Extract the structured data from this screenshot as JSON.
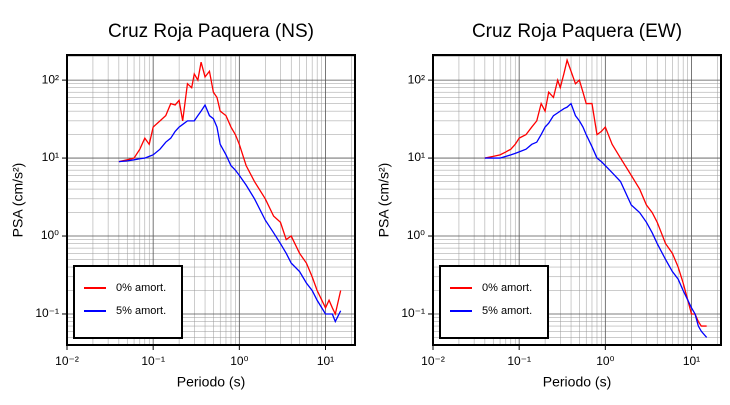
{
  "chart_data": [
    {
      "type": "line",
      "title": "Cruz Roja Paquera (NS)",
      "xlabel": "Periodo (s)",
      "ylabel": "PSA (cm/s²)",
      "log_x": true,
      "log_y": true,
      "grid": true,
      "minor_grid": true,
      "legend": "lower left",
      "xlim": [
        0.01,
        22
      ],
      "ylim": [
        0.04,
        210
      ],
      "xticks": [
        {
          "value": 0.01,
          "label": "10⁻²"
        },
        {
          "value": 0.1,
          "label": "10⁻¹"
        },
        {
          "value": 1,
          "label": "10⁰"
        },
        {
          "value": 10,
          "label": "10¹"
        }
      ],
      "yticks": [
        {
          "value": 0.1,
          "label": "10⁻¹"
        },
        {
          "value": 1,
          "label": "10⁰"
        },
        {
          "value": 10,
          "label": "10¹"
        },
        {
          "value": 100,
          "label": "10²"
        }
      ],
      "x": [
        0.04,
        0.05,
        0.06,
        0.07,
        0.08,
        0.09,
        0.1,
        0.12,
        0.14,
        0.16,
        0.18,
        0.2,
        0.22,
        0.25,
        0.28,
        0.3,
        0.33,
        0.36,
        0.4,
        0.45,
        0.5,
        0.55,
        0.6,
        0.7,
        0.8,
        0.9,
        1,
        1.2,
        1.5,
        2,
        2.5,
        3,
        3.5,
        4,
        5,
        6,
        7,
        8,
        10,
        11,
        12,
        13,
        15
      ],
      "series": [
        {
          "name": "0% amort.",
          "color": "#ff0000",
          "values": [
            9,
            9.5,
            10,
            13,
            18,
            15,
            25,
            30,
            35,
            50,
            48,
            55,
            30,
            90,
            80,
            120,
            100,
            170,
            110,
            130,
            70,
            60,
            40,
            35,
            25,
            20,
            15,
            8,
            5,
            3,
            1.8,
            1.5,
            0.9,
            1.0,
            0.6,
            0.45,
            0.3,
            0.2,
            0.12,
            0.15,
            0.12,
            0.1,
            0.2
          ]
        },
        {
          "name": "5% amort.",
          "color": "#0000ff",
          "values": [
            9,
            9.2,
            9.5,
            9.8,
            10,
            10.5,
            11,
            13,
            16,
            18,
            22,
            25,
            27,
            30,
            30,
            30,
            35,
            40,
            48,
            35,
            32,
            25,
            15,
            11,
            8,
            7,
            6,
            4.5,
            3,
            1.6,
            1.1,
            0.8,
            0.6,
            0.45,
            0.35,
            0.25,
            0.2,
            0.15,
            0.1,
            0.1,
            0.1,
            0.08,
            0.11
          ]
        }
      ]
    },
    {
      "type": "line",
      "title": "Cruz Roja Paquera (EW)",
      "xlabel": "Periodo (s)",
      "ylabel": "PSA (cm/s²)",
      "log_x": true,
      "log_y": true,
      "grid": true,
      "minor_grid": true,
      "legend": "lower left",
      "xlim": [
        0.01,
        22
      ],
      "ylim": [
        0.04,
        210
      ],
      "xticks": [
        {
          "value": 0.01,
          "label": "10⁻²"
        },
        {
          "value": 0.1,
          "label": "10⁻¹"
        },
        {
          "value": 1,
          "label": "10⁰"
        },
        {
          "value": 10,
          "label": "10¹"
        }
      ],
      "yticks": [
        {
          "value": 0.1,
          "label": "10⁻¹"
        },
        {
          "value": 1,
          "label": "10⁰"
        },
        {
          "value": 10,
          "label": "10¹"
        },
        {
          "value": 100,
          "label": "10²"
        }
      ],
      "x": [
        0.04,
        0.05,
        0.06,
        0.07,
        0.08,
        0.09,
        0.1,
        0.12,
        0.14,
        0.16,
        0.18,
        0.2,
        0.22,
        0.25,
        0.28,
        0.3,
        0.33,
        0.36,
        0.4,
        0.45,
        0.5,
        0.55,
        0.6,
        0.7,
        0.8,
        0.9,
        1,
        1.2,
        1.5,
        2,
        2.5,
        3,
        3.5,
        4,
        5,
        6,
        7,
        8,
        10,
        11,
        12,
        13,
        15
      ],
      "series": [
        {
          "name": "0% amort.",
          "color": "#ff0000",
          "values": [
            10,
            10.5,
            11,
            12,
            13,
            15,
            18,
            20,
            25,
            30,
            50,
            40,
            70,
            60,
            100,
            80,
            120,
            180,
            130,
            90,
            100,
            70,
            50,
            50,
            20,
            22,
            25,
            15,
            10,
            6,
            4,
            2.5,
            2,
            1.5,
            0.8,
            0.6,
            0.4,
            0.25,
            0.1,
            0.1,
            0.08,
            0.07,
            0.07
          ]
        },
        {
          "name": "5% amort.",
          "color": "#0000ff",
          "values": [
            10,
            10,
            10,
            10.5,
            11,
            11.5,
            12,
            13,
            15,
            16,
            20,
            25,
            28,
            35,
            38,
            40,
            43,
            45,
            50,
            35,
            30,
            25,
            20,
            14,
            10,
            9,
            8,
            6.5,
            5,
            2.5,
            2,
            1.5,
            1.1,
            0.8,
            0.5,
            0.35,
            0.28,
            0.2,
            0.12,
            0.1,
            0.07,
            0.06,
            0.05
          ]
        }
      ]
    }
  ]
}
